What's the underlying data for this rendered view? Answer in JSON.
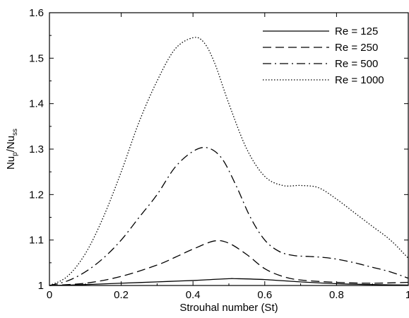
{
  "chart_data": {
    "type": "line",
    "xlabel": "Strouhal number (St)",
    "ylabel": {
      "main": "Nu",
      "sub1": "p",
      "sep": "/Nu",
      "sub2": "ss"
    },
    "xlim": [
      0,
      1
    ],
    "ylim": [
      1,
      1.6
    ],
    "x_ticks": [
      "0",
      "0.2",
      "0.4",
      "0.6",
      "0.8",
      "1"
    ],
    "y_ticks": [
      "1",
      "1.1",
      "1.2",
      "1.3",
      "1.4",
      "1.5",
      "1.6"
    ],
    "grid": false,
    "legend_position": "top-right",
    "series": [
      {
        "name": "Re = 125",
        "dash": "solid",
        "x": [
          0,
          0.1,
          0.2,
          0.3,
          0.4,
          0.45,
          0.5,
          0.52,
          0.6,
          0.7,
          0.8,
          0.9,
          1.0
        ],
        "y": [
          1.0,
          1.002,
          1.005,
          1.008,
          1.011,
          1.013,
          1.015,
          1.015,
          1.013,
          1.008,
          1.004,
          1.002,
          1.001
        ]
      },
      {
        "name": "Re = 250",
        "dash": "dashed",
        "x": [
          0,
          0.1,
          0.2,
          0.3,
          0.35,
          0.4,
          0.46,
          0.5,
          0.55,
          0.6,
          0.65,
          0.7,
          0.8,
          0.9,
          1.0
        ],
        "y": [
          1.0,
          1.005,
          1.02,
          1.045,
          1.062,
          1.08,
          1.098,
          1.093,
          1.068,
          1.037,
          1.02,
          1.012,
          1.007,
          1.005,
          1.007
        ]
      },
      {
        "name": "Re = 500",
        "dash": "dashdot",
        "x": [
          0,
          0.05,
          0.1,
          0.15,
          0.2,
          0.25,
          0.3,
          0.35,
          0.4,
          0.44,
          0.48,
          0.52,
          0.56,
          0.6,
          0.64,
          0.68,
          0.72,
          0.76,
          0.8,
          0.85,
          0.9,
          0.95,
          1.0
        ],
        "y": [
          1.0,
          1.01,
          1.03,
          1.06,
          1.1,
          1.15,
          1.2,
          1.26,
          1.295,
          1.303,
          1.28,
          1.22,
          1.15,
          1.1,
          1.075,
          1.066,
          1.064,
          1.062,
          1.058,
          1.05,
          1.04,
          1.03,
          1.016
        ]
      },
      {
        "name": "Re = 1000",
        "dash": "dotted",
        "x": [
          0,
          0.05,
          0.1,
          0.15,
          0.2,
          0.25,
          0.3,
          0.35,
          0.4,
          0.43,
          0.46,
          0.5,
          0.55,
          0.6,
          0.65,
          0.7,
          0.75,
          0.8,
          0.85,
          0.9,
          0.95,
          1.0
        ],
        "y": [
          1.0,
          1.02,
          1.07,
          1.15,
          1.25,
          1.36,
          1.45,
          1.52,
          1.545,
          1.535,
          1.49,
          1.4,
          1.3,
          1.24,
          1.22,
          1.22,
          1.215,
          1.19,
          1.16,
          1.13,
          1.1,
          1.06
        ]
      }
    ]
  }
}
